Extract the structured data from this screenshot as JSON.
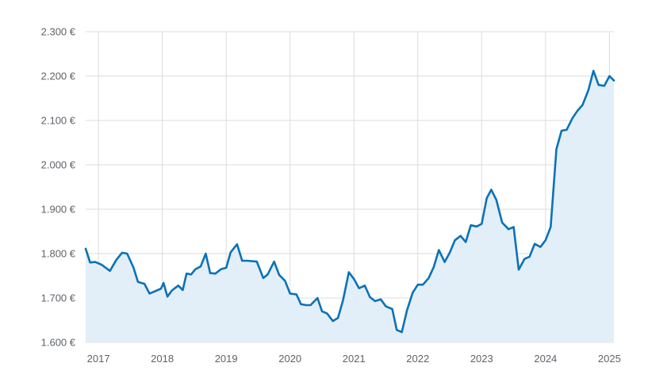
{
  "chart_data": {
    "type": "area",
    "title": "",
    "xlabel": "",
    "ylabel": "",
    "ylim": [
      1600,
      2300
    ],
    "xlim": [
      2016.8,
      2025.07
    ],
    "y_ticks": [
      {
        "value": 1600,
        "label": "1.600 €"
      },
      {
        "value": 1700,
        "label": "1.700 €"
      },
      {
        "value": 1800,
        "label": "1.800 €"
      },
      {
        "value": 1900,
        "label": "1.900 €"
      },
      {
        "value": 2000,
        "label": "2.000 €"
      },
      {
        "value": 2100,
        "label": "2.100 €"
      },
      {
        "value": 2200,
        "label": "2.200 €"
      },
      {
        "value": 2300,
        "label": "2.300 €"
      }
    ],
    "x_ticks": [
      {
        "value": 2017,
        "label": "2017"
      },
      {
        "value": 2018,
        "label": "2018"
      },
      {
        "value": 2019,
        "label": "2019"
      },
      {
        "value": 2020,
        "label": "2020"
      },
      {
        "value": 2021,
        "label": "2021"
      },
      {
        "value": 2022,
        "label": "2022"
      },
      {
        "value": 2023,
        "label": "2023"
      },
      {
        "value": 2024,
        "label": "2024"
      },
      {
        "value": 2025,
        "label": "2025"
      }
    ],
    "grid": true,
    "line_color": "#0b72b9",
    "fill_color": "#e3eff8",
    "series": [
      {
        "x": [
          2016.8,
          2016.87,
          2016.95,
          2017.05,
          2017.18,
          2017.28,
          2017.37,
          2017.45,
          2017.55,
          2017.62,
          2017.72,
          2017.8,
          2017.9,
          2017.98,
          2018.02,
          2018.08,
          2018.15,
          2018.25,
          2018.32,
          2018.38,
          2018.45,
          2018.52,
          2018.6,
          2018.68,
          2018.75,
          2018.83,
          2018.92,
          2019.0,
          2019.07,
          2019.17,
          2019.25,
          2019.33,
          2019.48,
          2019.58,
          2019.65,
          2019.75,
          2019.83,
          2019.92,
          2020.0,
          2020.1,
          2020.17,
          2020.25,
          2020.32,
          2020.43,
          2020.5,
          2020.58,
          2020.67,
          2020.75,
          2020.83,
          2020.92,
          2021.0,
          2021.08,
          2021.17,
          2021.25,
          2021.33,
          2021.42,
          2021.5,
          2021.6,
          2021.67,
          2021.75,
          2021.83,
          2021.92,
          2022.0,
          2022.08,
          2022.17,
          2022.25,
          2022.33,
          2022.42,
          2022.5,
          2022.58,
          2022.67,
          2022.75,
          2022.83,
          2022.92,
          2023.0,
          2023.08,
          2023.15,
          2023.23,
          2023.32,
          2023.42,
          2023.5,
          2023.58,
          2023.67,
          2023.75,
          2023.83,
          2023.92,
          2024.0,
          2024.08,
          2024.17,
          2024.25,
          2024.33,
          2024.42,
          2024.5,
          2024.58,
          2024.67,
          2024.75,
          2024.83,
          2024.92,
          2025.0,
          2025.07
        ],
        "y": [
          1811,
          1780,
          1781,
          1775,
          1761,
          1786,
          1802,
          1800,
          1768,
          1736,
          1732,
          1710,
          1716,
          1721,
          1734,
          1703,
          1717,
          1728,
          1718,
          1755,
          1753,
          1765,
          1771,
          1800,
          1756,
          1755,
          1765,
          1768,
          1803,
          1821,
          1784,
          1784,
          1782,
          1745,
          1753,
          1782,
          1752,
          1739,
          1710,
          1708,
          1686,
          1684,
          1684,
          1700,
          1670,
          1665,
          1648,
          1655,
          1695,
          1758,
          1743,
          1722,
          1728,
          1702,
          1693,
          1697,
          1681,
          1675,
          1628,
          1623,
          1672,
          1712,
          1730,
          1730,
          1745,
          1770,
          1808,
          1781,
          1802,
          1830,
          1840,
          1826,
          1864,
          1861,
          1867,
          1925,
          1944,
          1921,
          1870,
          1855,
          1860,
          1764,
          1788,
          1793,
          1822,
          1815,
          1830,
          1860,
          2035,
          2077,
          2079,
          2105,
          2122,
          2135,
          2168,
          2212,
          2180,
          2178,
          2200,
          2190
        ]
      }
    ]
  }
}
